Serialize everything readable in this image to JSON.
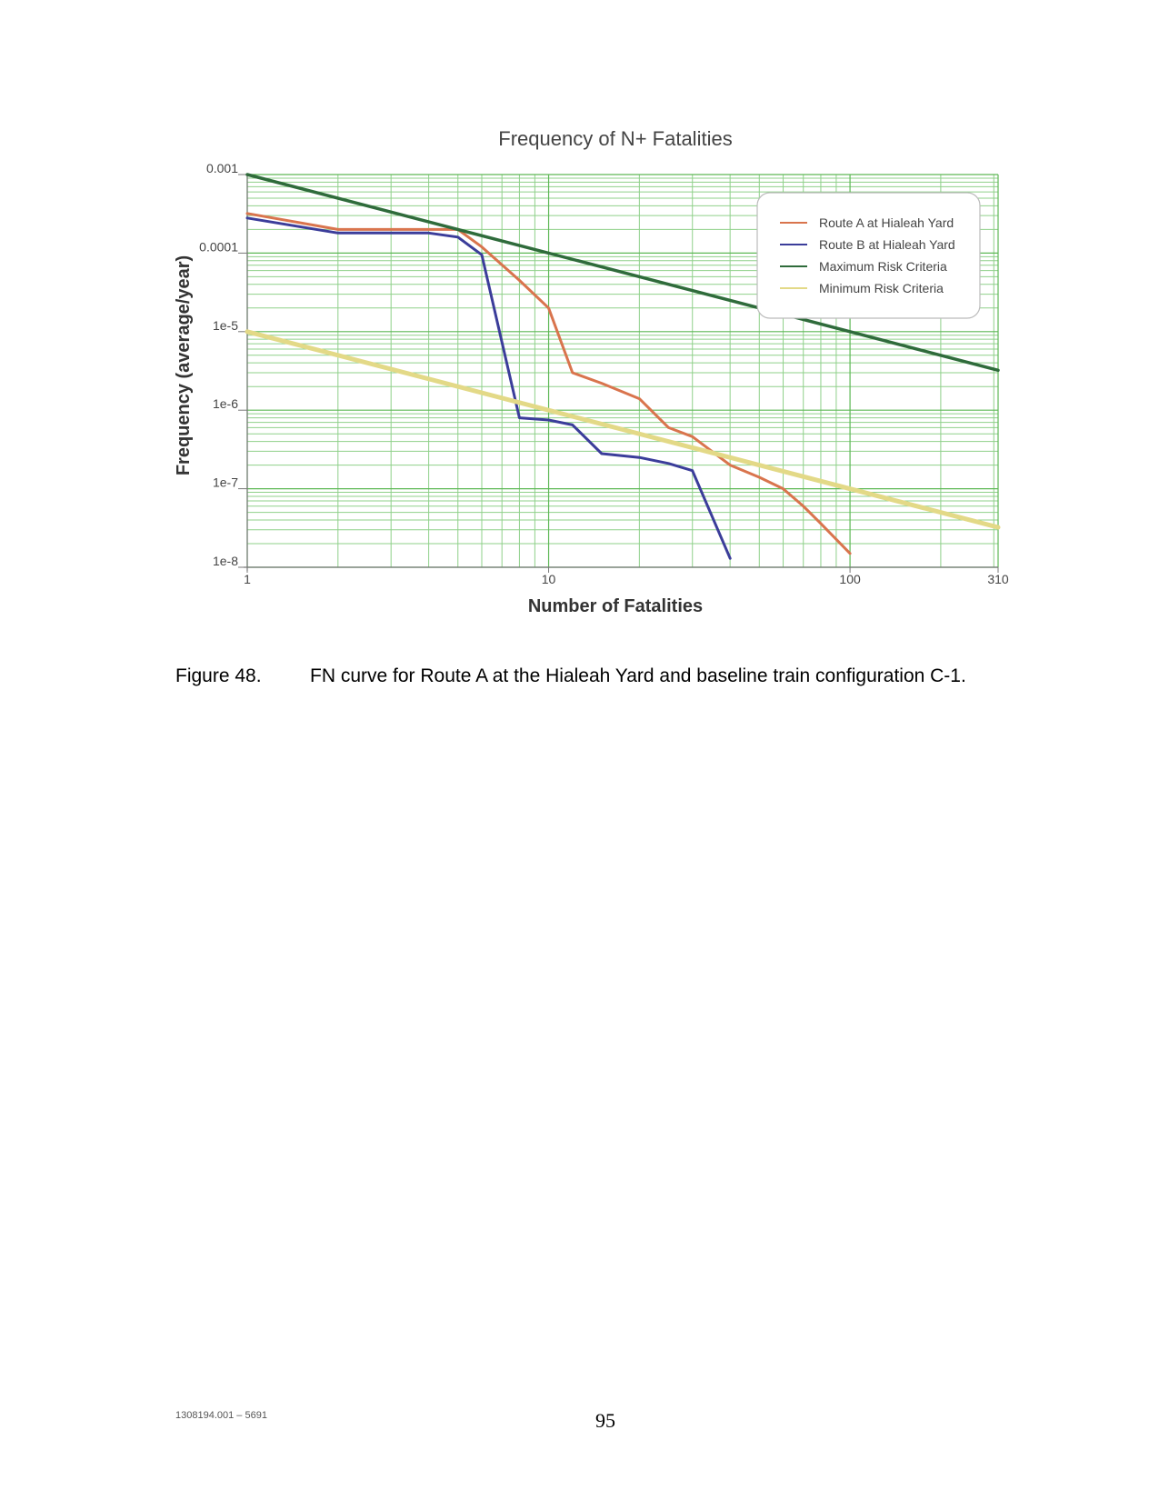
{
  "chart_data": {
    "type": "line",
    "title": "Frequency of N+ Fatalities",
    "xlabel": "Number of Fatalities",
    "ylabel": "Frequency (average/year)",
    "x_scale": "log",
    "y_scale": "log",
    "xlim": [
      1,
      310
    ],
    "ylim": [
      1e-08,
      0.001
    ],
    "x_ticks": [
      {
        "value": 1,
        "label": "1"
      },
      {
        "value": 10,
        "label": "10"
      },
      {
        "value": 100,
        "label": "100"
      },
      {
        "value": 310,
        "label": "310"
      }
    ],
    "y_ticks": [
      {
        "value": 0.001,
        "label": "0.001"
      },
      {
        "value": 0.0001,
        "label": "0.0001"
      },
      {
        "value": 1e-05,
        "label": "1e-5"
      },
      {
        "value": 1e-06,
        "label": "1e-6"
      },
      {
        "value": 1e-07,
        "label": "1e-7"
      },
      {
        "value": 1e-08,
        "label": "1e-8"
      }
    ],
    "grid": true,
    "legend_position": "top-right",
    "series": [
      {
        "name": "Route A at Hialeah Yard",
        "color": "#d9744d",
        "x": [
          1,
          2,
          5,
          6,
          8,
          10,
          12,
          15,
          20,
          25,
          30,
          40,
          50,
          60,
          70,
          80,
          100
        ],
        "y": [
          0.00032,
          0.0002,
          0.0002,
          0.00012,
          4.5e-05,
          2e-05,
          3e-06,
          2.2e-06,
          1.4e-06,
          6e-07,
          4.6e-07,
          2e-07,
          1.4e-07,
          1e-07,
          6e-08,
          3.6e-08,
          1.5e-08
        ]
      },
      {
        "name": "Route B at Hialeah Yard",
        "color": "#3b3d9a",
        "x": [
          1,
          2,
          4,
          5,
          6,
          8,
          10,
          12,
          15,
          20,
          25,
          30,
          40
        ],
        "y": [
          0.00028,
          0.00018,
          0.00018,
          0.00016,
          9.5e-05,
          8e-07,
          7.5e-07,
          6.5e-07,
          2.8e-07,
          2.5e-07,
          2.1e-07,
          1.7e-07,
          1.3e-08
        ]
      },
      {
        "name": "Maximum Risk Criteria",
        "color": "#2f6b3b",
        "x": [
          1,
          310
        ],
        "y": [
          0.001,
          3.226e-06
        ]
      },
      {
        "name": "Minimum Risk Criteria",
        "color": "#e3d987",
        "x": [
          1,
          310
        ],
        "y": [
          1e-05,
          3.226e-08
        ]
      }
    ]
  },
  "caption": {
    "number": "Figure 48.",
    "text": "FN curve for Route A at the Hialeah Yard and baseline train configuration C-1."
  },
  "footer": {
    "doc_id": "1308194.001 – 5691",
    "page_number": "95"
  }
}
